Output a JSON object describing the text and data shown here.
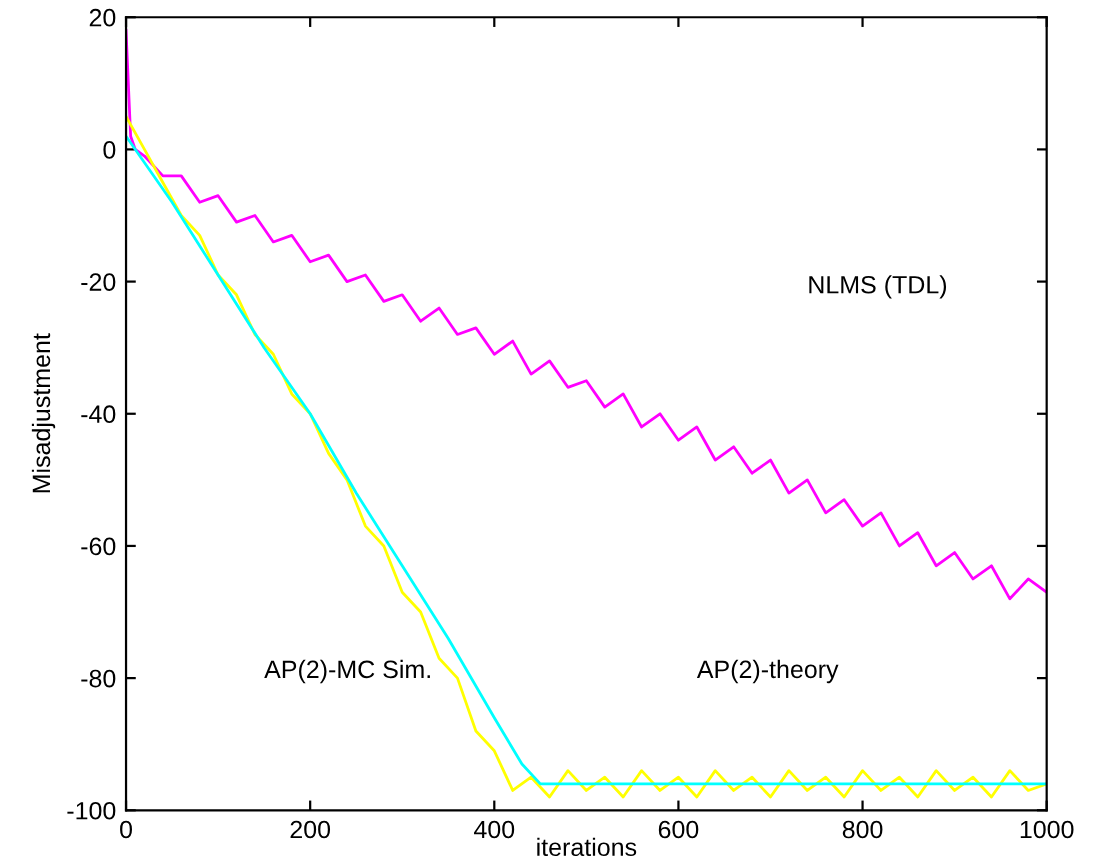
{
  "chart_data": {
    "type": "line",
    "xlabel": "iterations",
    "ylabel": "Misadjustment",
    "xlim": [
      0,
      1000
    ],
    "ylim": [
      -100,
      20
    ],
    "xticks": [
      0,
      200,
      400,
      600,
      800,
      1000
    ],
    "yticks": [
      -100,
      -80,
      -60,
      -40,
      -20,
      0,
      20
    ],
    "grid": false,
    "legend": false,
    "annotations": [
      "NLMS (TDL)",
      "AP(2)-MC Sim.",
      "AP(2)-theory"
    ],
    "series": [
      {
        "color": "#ff00ff",
        "x": [
          0,
          5,
          10,
          20,
          40,
          60,
          80,
          100,
          120,
          140,
          160,
          180,
          200,
          220,
          240,
          260,
          280,
          300,
          320,
          340,
          360,
          380,
          400,
          420,
          440,
          460,
          480,
          500,
          520,
          540,
          560,
          580,
          600,
          620,
          640,
          660,
          680,
          700,
          720,
          740,
          760,
          780,
          800,
          820,
          840,
          860,
          880,
          900,
          920,
          940,
          960,
          980,
          1000
        ],
        "values": [
          18,
          2,
          0,
          -1,
          -4,
          -4,
          -8,
          -7,
          -11,
          -10,
          -14,
          -13,
          -17,
          -16,
          -20,
          -19,
          -23,
          -22,
          -26,
          -24,
          -28,
          -27,
          -31,
          -29,
          -34,
          -32,
          -36,
          -35,
          -39,
          -37,
          -42,
          -40,
          -44,
          -42,
          -47,
          -45,
          -49,
          -47,
          -52,
          -50,
          -55,
          -53,
          -57,
          -55,
          -60,
          -58,
          -63,
          -61,
          -65,
          -63,
          -68,
          -65,
          -67
        ]
      },
      {
        "color": "#ffff00",
        "x": [
          0,
          20,
          40,
          60,
          80,
          100,
          120,
          140,
          160,
          180,
          200,
          220,
          240,
          260,
          280,
          300,
          320,
          340,
          360,
          380,
          400,
          420,
          440,
          460,
          480,
          500,
          520,
          540,
          560,
          580,
          600,
          620,
          640,
          660,
          680,
          700,
          720,
          740,
          760,
          780,
          800,
          820,
          840,
          860,
          880,
          900,
          920,
          940,
          960,
          980,
          1000
        ],
        "values": [
          5,
          0,
          -5,
          -10,
          -13,
          -19,
          -22,
          -28,
          -31,
          -37,
          -40,
          -46,
          -50,
          -57,
          -60,
          -67,
          -70,
          -77,
          -80,
          -88,
          -91,
          -97,
          -95,
          -98,
          -94,
          -97,
          -95,
          -98,
          -94,
          -97,
          -95,
          -98,
          -94,
          -97,
          -95,
          -98,
          -94,
          -97,
          -95,
          -98,
          -94,
          -97,
          -95,
          -98,
          -94,
          -97,
          -95,
          -98,
          -94,
          -97,
          -96
        ]
      },
      {
        "color": "#00ffff",
        "x": [
          0,
          50,
          100,
          150,
          200,
          250,
          300,
          350,
          400,
          430,
          450,
          1000
        ],
        "values": [
          2,
          -8,
          -19,
          -30,
          -40,
          -52,
          -63,
          -74,
          -86,
          -93,
          -96,
          -96
        ]
      }
    ]
  }
}
